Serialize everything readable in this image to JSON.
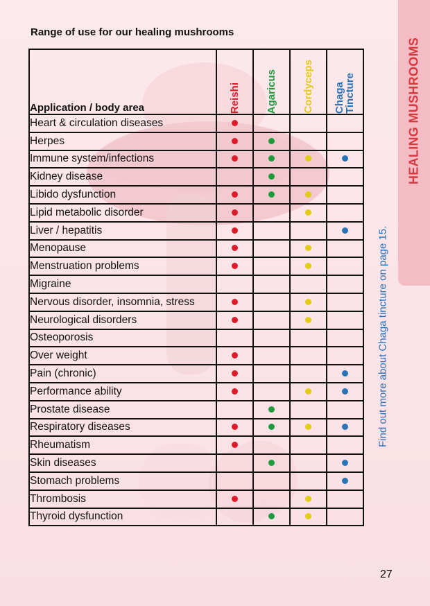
{
  "title": "Range of use for our healing mushrooms",
  "side_tab_label": "HEALING MUSHROOMS",
  "side_note": "Find out more about Chaga tincture on page 15.",
  "page_number": "27",
  "colors": {
    "reishi": "#dd1c2a",
    "agaricus": "#1f9a3c",
    "cordyceps": "#e2cc16",
    "chaga": "#2a72b6"
  },
  "table": {
    "header_application": "Application / body area",
    "columns": [
      {
        "key": "reishi",
        "label": "Reishi"
      },
      {
        "key": "agaricus",
        "label": "Agaricus"
      },
      {
        "key": "cordyceps",
        "label": "Cordyceps"
      },
      {
        "key": "chaga",
        "label": "Chaga Tincture"
      }
    ],
    "rows": [
      {
        "label": "Heart & circulation diseases",
        "marks": [
          true,
          false,
          false,
          false
        ]
      },
      {
        "label": "Herpes",
        "marks": [
          true,
          true,
          false,
          false
        ]
      },
      {
        "label": "Immune system/infections",
        "marks": [
          true,
          true,
          true,
          true
        ]
      },
      {
        "label": "Kidney disease",
        "marks": [
          false,
          true,
          false,
          false
        ]
      },
      {
        "label": "Libido dysfunction",
        "marks": [
          true,
          true,
          true,
          false
        ]
      },
      {
        "label": "Lipid metabolic disorder",
        "marks": [
          true,
          false,
          true,
          false
        ]
      },
      {
        "label": "Liver / hepatitis",
        "marks": [
          true,
          false,
          false,
          true
        ]
      },
      {
        "label": "Menopause",
        "marks": [
          true,
          false,
          true,
          false
        ]
      },
      {
        "label": "Menstruation problems",
        "marks": [
          true,
          false,
          true,
          false
        ]
      },
      {
        "label": "Migraine",
        "marks": [
          false,
          false,
          false,
          false
        ]
      },
      {
        "label": "Nervous disorder, insomnia, stress",
        "marks": [
          true,
          false,
          true,
          false
        ]
      },
      {
        "label": "Neurological disorders",
        "marks": [
          true,
          false,
          true,
          false
        ]
      },
      {
        "label": "Osteoporosis",
        "marks": [
          false,
          false,
          false,
          false
        ]
      },
      {
        "label": "Over weight",
        "marks": [
          true,
          false,
          false,
          false
        ]
      },
      {
        "label": "Pain (chronic)",
        "marks": [
          true,
          false,
          false,
          true
        ]
      },
      {
        "label": "Performance ability",
        "marks": [
          true,
          false,
          true,
          true
        ]
      },
      {
        "label": "Prostate disease",
        "marks": [
          false,
          true,
          false,
          false
        ]
      },
      {
        "label": "Respiratory diseases",
        "marks": [
          true,
          true,
          true,
          true
        ]
      },
      {
        "label": "Rheumatism",
        "marks": [
          true,
          false,
          false,
          false
        ]
      },
      {
        "label": "Skin diseases",
        "marks": [
          false,
          true,
          false,
          true
        ]
      },
      {
        "label": "Stomach problems",
        "marks": [
          false,
          false,
          false,
          true
        ]
      },
      {
        "label": "Thrombosis",
        "marks": [
          true,
          false,
          true,
          false
        ]
      },
      {
        "label": "Thyroid dysfunction",
        "marks": [
          false,
          true,
          true,
          false
        ]
      }
    ]
  }
}
